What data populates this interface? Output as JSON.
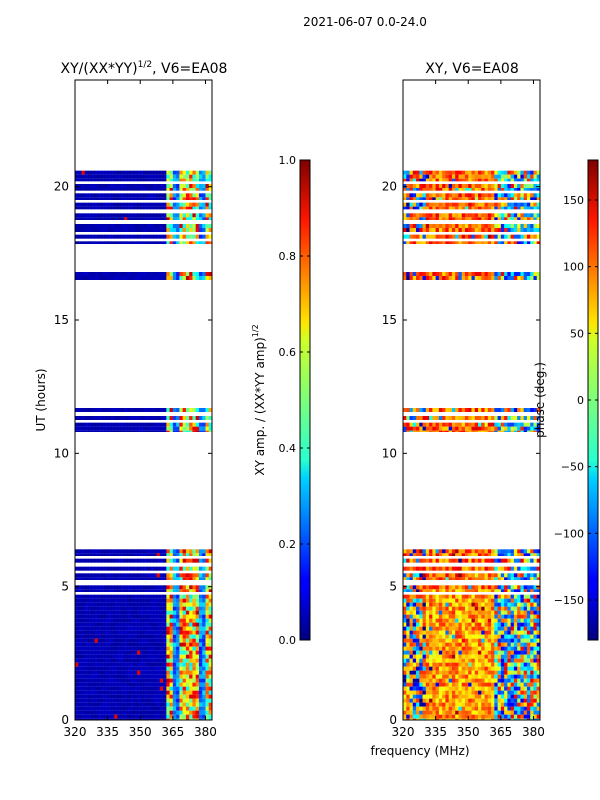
{
  "suptitle": "2021-06-07 0.0-24.0",
  "chart_data": [
    {
      "type": "heatmap",
      "title_prefix": "XY/(XX*YY)",
      "title_exponent": "1/2",
      "title_suffix": ", V6=EA08",
      "xlabel": "",
      "ylabel": "UT (hours)",
      "xlim": [
        320,
        383
      ],
      "ylim": [
        0,
        24
      ],
      "xticks": [
        "320",
        "335",
        "350",
        "365",
        "380"
      ],
      "xtick_values": [
        320,
        335,
        350,
        365,
        380
      ],
      "yticks": [
        "0",
        "5",
        "10",
        "15",
        "20"
      ],
      "ytick_values": [
        0,
        5,
        10,
        15,
        20
      ],
      "colorbar": {
        "label_prefix": "XY amp. / (XX*YY amp)",
        "label_exponent": "1/2",
        "range": [
          0.0,
          1.0
        ],
        "ticks": [
          "0.0",
          "0.2",
          "0.4",
          "0.6",
          "0.8",
          "1.0"
        ],
        "tick_values": [
          0.0,
          0.2,
          0.4,
          0.6,
          0.8,
          1.0
        ]
      }
    },
    {
      "type": "heatmap",
      "title": "XY, V6=EA08",
      "xlabel": "frequency (MHz)",
      "ylabel": "",
      "xlim": [
        320,
        383
      ],
      "ylim": [
        0,
        24
      ],
      "xticks": [
        "320",
        "335",
        "350",
        "365",
        "380"
      ],
      "xtick_values": [
        320,
        335,
        350,
        365,
        380
      ],
      "yticks": [
        "0",
        "5",
        "10",
        "15",
        "20"
      ],
      "ytick_values": [
        0,
        5,
        10,
        15,
        20
      ],
      "colorbar": {
        "label": "phase (deg.)",
        "range": [
          -180,
          180
        ],
        "ticks": [
          "−150",
          "−100",
          "−50",
          "0",
          "50",
          "100",
          "150"
        ],
        "tick_values": [
          -150,
          -100,
          -50,
          0,
          50,
          100,
          150
        ]
      }
    }
  ],
  "data_blocks_ut_hours": [
    [
      0.0,
      4.7
    ],
    [
      4.8,
      5.05
    ],
    [
      5.25,
      5.5
    ],
    [
      5.6,
      5.75
    ],
    [
      5.9,
      6.05
    ],
    [
      6.15,
      6.4
    ],
    [
      10.8,
      11.15
    ],
    [
      11.25,
      11.4
    ],
    [
      11.55,
      11.7
    ],
    [
      16.5,
      16.8
    ],
    [
      17.85,
      17.95
    ],
    [
      18.05,
      18.2
    ],
    [
      18.3,
      18.6
    ],
    [
      18.75,
      19.0
    ],
    [
      19.15,
      19.4
    ],
    [
      19.5,
      19.75
    ],
    [
      19.85,
      20.1
    ],
    [
      20.2,
      20.6
    ]
  ],
  "rfi_band_mhz": [
    362,
    383
  ]
}
